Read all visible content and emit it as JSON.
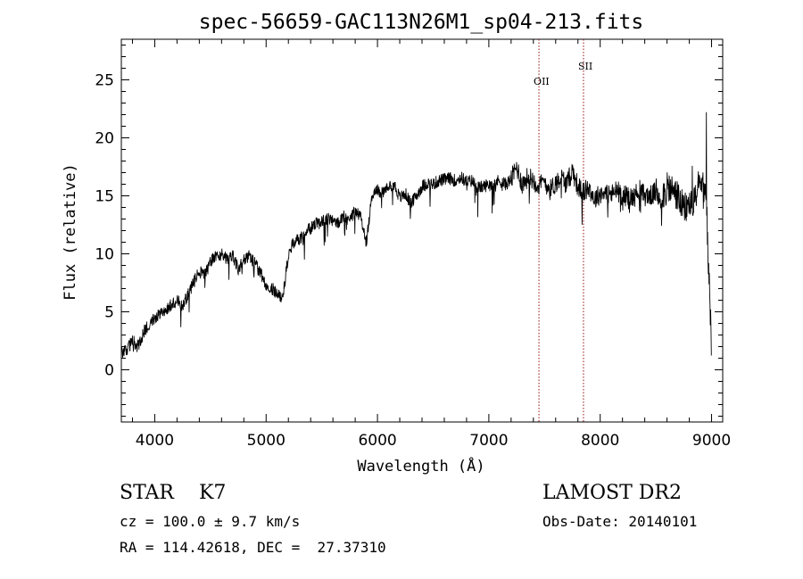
{
  "chart_data": {
    "type": "line",
    "title": "spec-56659-GAC113N26M1_sp04-213.fits",
    "xlabel": "Wavelength (Å)",
    "ylabel": "Flux (relative)",
    "xlim": [
      3700,
      9100
    ],
    "ylim": [
      -4.5,
      28.5
    ],
    "xticks": [
      4000,
      5000,
      6000,
      7000,
      8000,
      9000
    ],
    "yticks": [
      0,
      5,
      10,
      15,
      20,
      25
    ],
    "grid": false,
    "lines": [
      {
        "label": "OII",
        "x": 7450
      },
      {
        "label": "SII",
        "x": 7850
      }
    ],
    "series": [
      {
        "x": [
          3700,
          3750,
          3800,
          3850,
          3900,
          3950,
          4000,
          4050,
          4100,
          4150,
          4200,
          4250,
          4300,
          4350,
          4400,
          4450,
          4500,
          4550,
          4600,
          4650,
          4700,
          4750,
          4800,
          4850,
          4900,
          4950,
          5000,
          5050,
          5100,
          5150,
          5200,
          5250,
          5300,
          5350,
          5400,
          5450,
          5500,
          5550,
          5600,
          5650,
          5700,
          5750,
          5800,
          5850,
          5900,
          5950,
          6000,
          6050,
          6100,
          6150,
          6200,
          6250,
          6300,
          6350,
          6400,
          6450,
          6500,
          6550,
          6600,
          6650,
          6700,
          6750,
          6800,
          6850,
          6900,
          6950,
          7000,
          7050,
          7100,
          7150,
          7200,
          7250,
          7300,
          7350,
          7400,
          7450,
          7500,
          7550,
          7600,
          7650,
          7700,
          7750,
          7800,
          7850,
          7900,
          7950,
          8000,
          8050,
          8100,
          8150,
          8200,
          8250,
          8300,
          8350,
          8400,
          8450,
          8500,
          8550,
          8600,
          8650,
          8700,
          8750,
          8800,
          8850,
          8900,
          8950,
          9000
        ],
        "values": [
          1.5,
          1.8,
          2.5,
          2.0,
          3.2,
          4.0,
          4.5,
          5.0,
          5.2,
          5.6,
          6.0,
          5.5,
          6.5,
          7.5,
          8.5,
          8.2,
          9.3,
          9.8,
          10.0,
          9.6,
          9.9,
          8.6,
          9.6,
          9.8,
          9.2,
          8.3,
          7.4,
          7.0,
          6.6,
          6.2,
          10.0,
          11.0,
          11.3,
          11.8,
          12.2,
          12.6,
          12.8,
          13.0,
          12.9,
          12.6,
          13.2,
          13.1,
          13.6,
          13.2,
          11.0,
          15.0,
          15.5,
          15.2,
          15.8,
          16.0,
          14.8,
          15.2,
          14.3,
          15.0,
          15.8,
          16.1,
          16.0,
          16.3,
          16.4,
          16.5,
          16.3,
          16.6,
          16.2,
          16.3,
          15.7,
          15.8,
          16.0,
          16.2,
          16.3,
          16.0,
          16.4,
          17.5,
          16.0,
          16.6,
          16.4,
          15.8,
          16.3,
          15.5,
          16.1,
          16.6,
          16.0,
          17.2,
          15.8,
          15.3,
          15.7,
          14.7,
          15.2,
          15.3,
          15.1,
          15.5,
          15.0,
          15.0,
          14.8,
          15.6,
          15.0,
          15.0,
          15.3,
          14.9,
          15.6,
          15.5,
          14.9,
          13.8,
          14.2,
          14.5,
          16.5,
          15.0,
          2.0
        ]
      }
    ]
  },
  "info": {
    "class_line": "STAR    K7",
    "survey": "LAMOST DR2",
    "cz_line": "cz = 100.0 ± 9.7 km/s",
    "obs_date": "Obs-Date: 20140101",
    "coords_line": "RA = 114.42618, DEC =  27.37310"
  }
}
